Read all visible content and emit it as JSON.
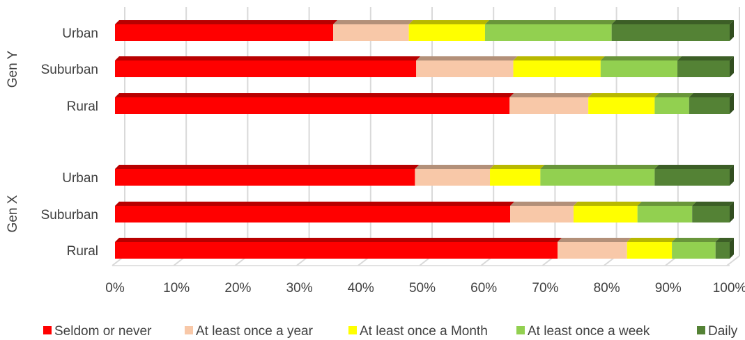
{
  "chart_data": {
    "type": "bar",
    "orientation": "horizontal",
    "stacked": "100%",
    "groups": [
      {
        "label": "Gen Y",
        "categories": [
          "Urban",
          "Suburban",
          "Rural"
        ]
      },
      {
        "label": "Gen X",
        "categories": [
          "Urban",
          "Suburban",
          "Rural"
        ]
      }
    ],
    "categories": [
      "Gen Y Urban",
      "Gen Y Suburban",
      "Gen Y Rural",
      "Gen X Urban",
      "Gen X Suburban",
      "Gen X Rural"
    ],
    "series": [
      {
        "name": "Seldom or never",
        "color": "#ff0000",
        "values": [
          35.5,
          49,
          64.2,
          48.8,
          64.3,
          72
        ]
      },
      {
        "name": "At least once a year",
        "color": "#f8c8a8",
        "values": [
          12.3,
          15.8,
          12.8,
          12.2,
          10.3,
          11.3
        ]
      },
      {
        "name": "At least once a Month",
        "color": "#ffff00",
        "values": [
          12.4,
          14.2,
          10.8,
          8.2,
          10.4,
          7.3
        ]
      },
      {
        "name": "At least once a week",
        "color": "#92d050",
        "values": [
          20.6,
          12.5,
          5.6,
          18.6,
          8.9,
          7.1
        ]
      },
      {
        "name": "Daily",
        "color": "#548235",
        "values": [
          19.2,
          8.5,
          6.6,
          12.2,
          6.1,
          2.3
        ]
      }
    ],
    "x_ticks": [
      "0%",
      "10%",
      "20%",
      "30%",
      "40%",
      "50%",
      "60%",
      "70%",
      "80%",
      "90%",
      "100%"
    ],
    "xlim": [
      0,
      100
    ],
    "grid": true,
    "legend_position": "bottom"
  }
}
